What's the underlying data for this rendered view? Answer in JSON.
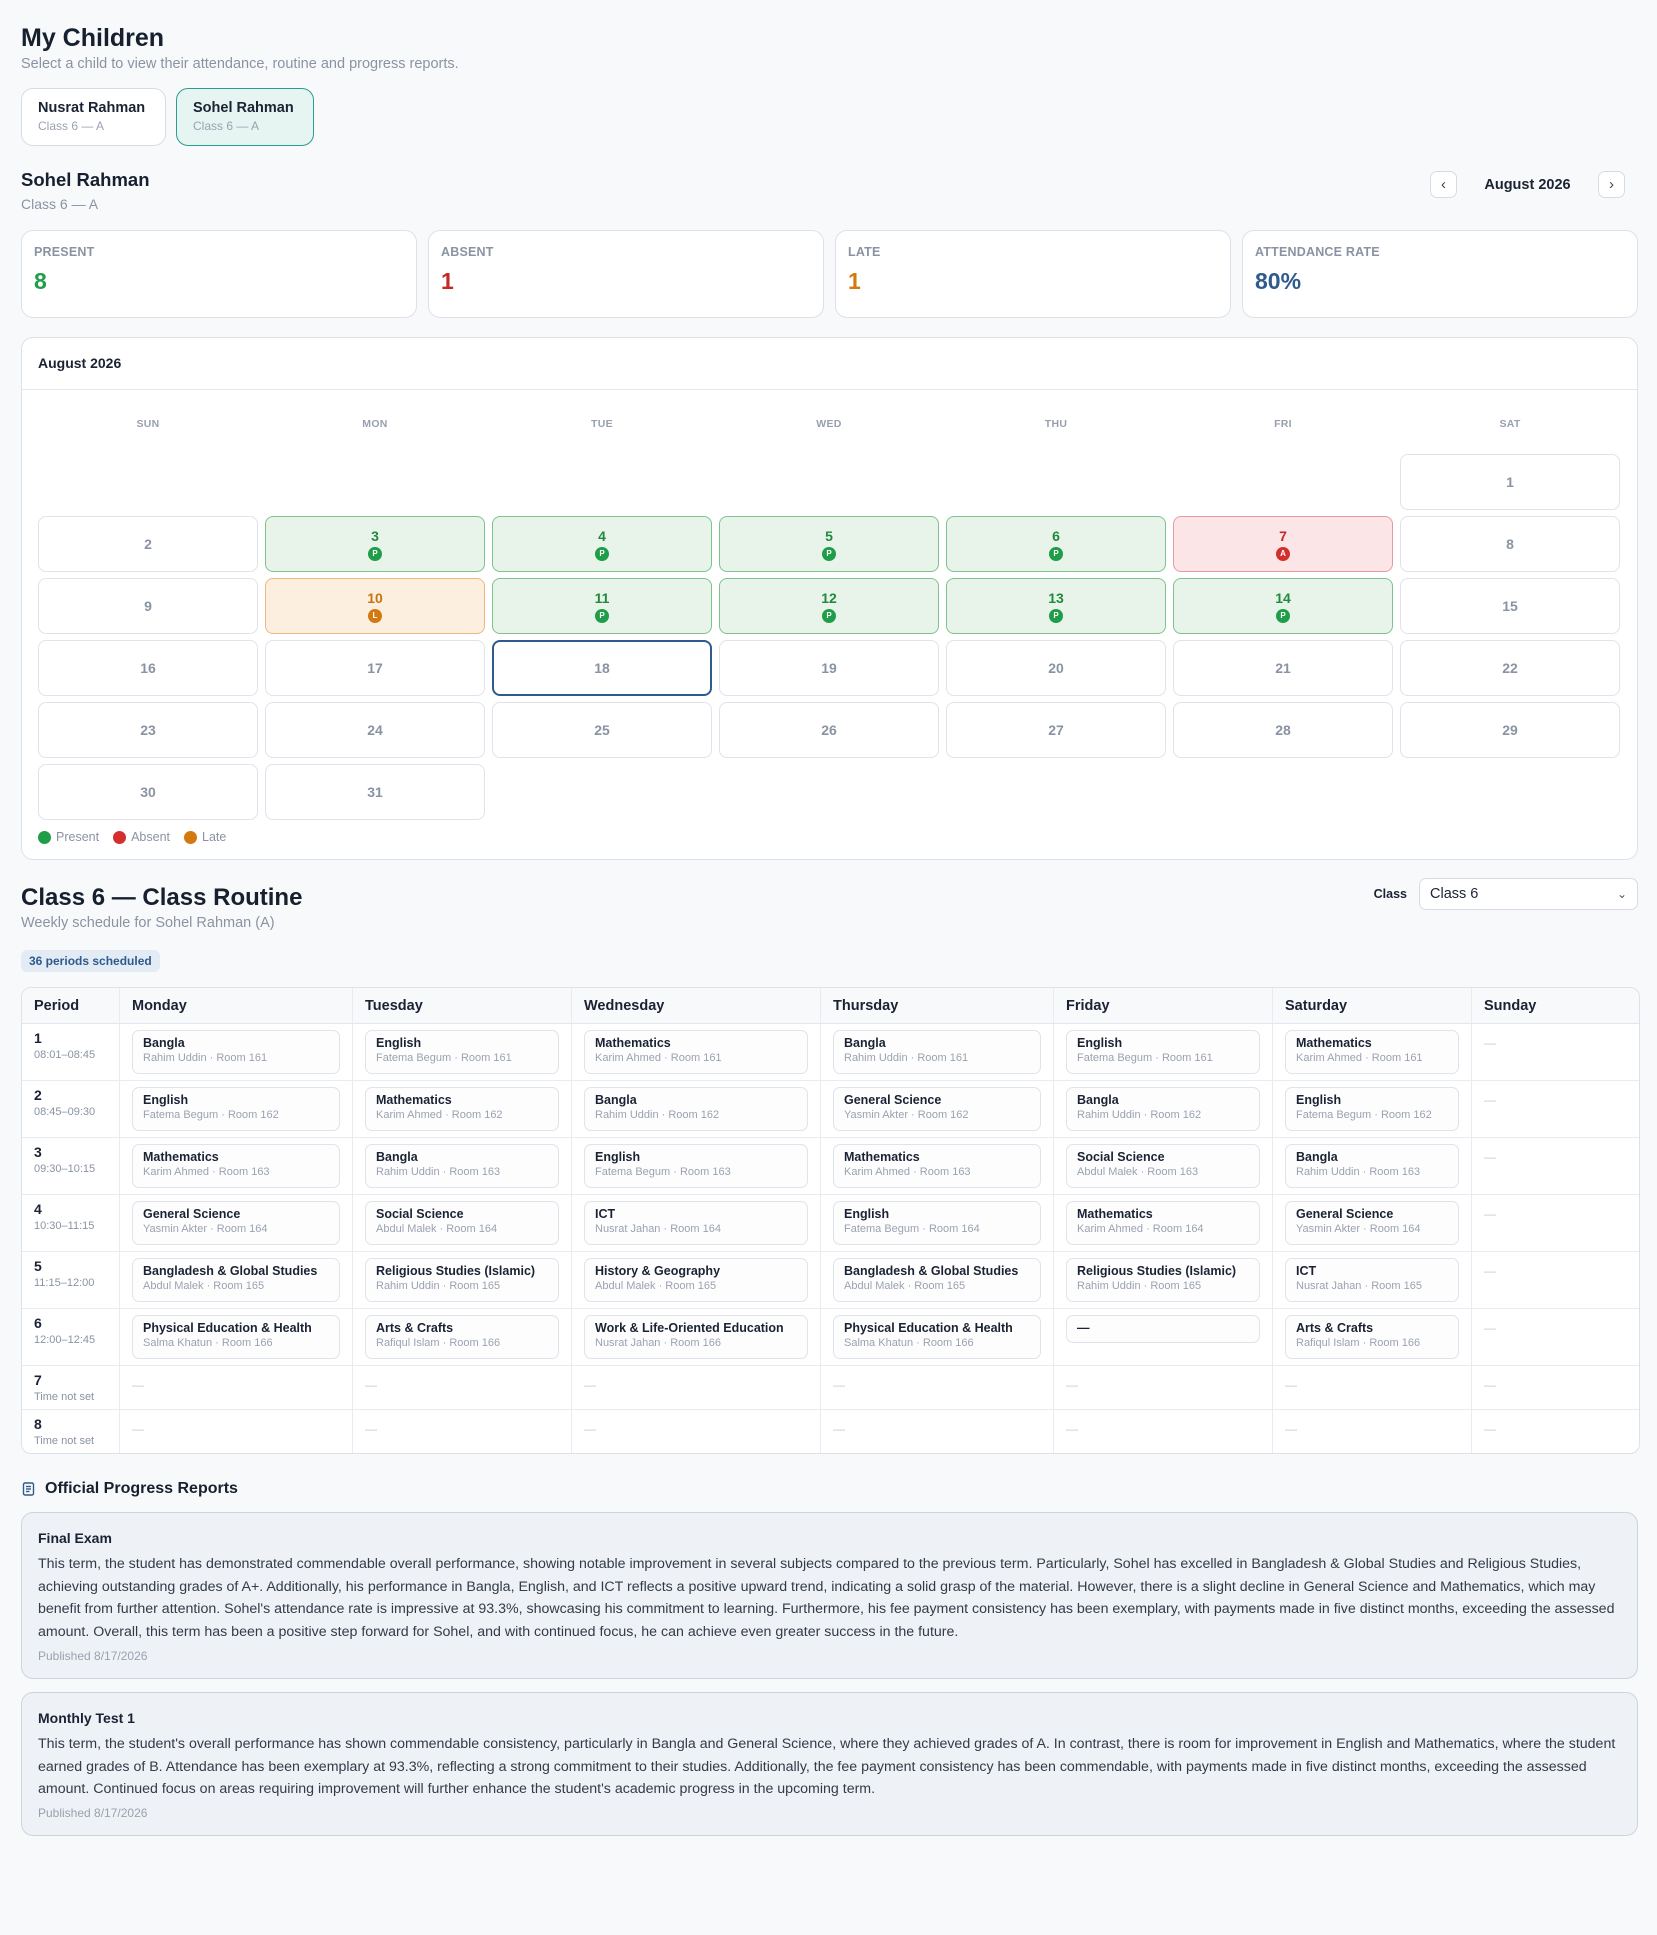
{
  "header": {
    "title": "My Children",
    "subtitle": "Select a child to view their attendance, routine and progress reports."
  },
  "children": [
    {
      "name": "Nusrat Rahman",
      "class": "Class 6 — A"
    },
    {
      "name": "Sohel Rahman",
      "class": "Class 6 — A"
    }
  ],
  "selected": {
    "name": "Sohel Rahman",
    "class": "Class 6 — A",
    "month": "August 2026"
  },
  "stats": {
    "present": {
      "label": "PRESENT",
      "value": "8",
      "color": "#1f9d48"
    },
    "absent": {
      "label": "ABSENT",
      "value": "1",
      "color": "#c62828"
    },
    "late": {
      "label": "LATE",
      "value": "1",
      "color": "#d4790f"
    },
    "rate": {
      "label": "ATTENDANCE RATE",
      "value": "80%",
      "color": "#2f5a8c"
    }
  },
  "calendar": {
    "title": "August 2026",
    "weekdays": [
      "SUN",
      "MON",
      "TUE",
      "WED",
      "THU",
      "FRI",
      "SAT"
    ],
    "leading_blanks": 6,
    "days": [
      {
        "d": "1"
      },
      {
        "d": "2"
      },
      {
        "d": "3",
        "s": "present",
        "b": "P"
      },
      {
        "d": "4",
        "s": "present",
        "b": "P"
      },
      {
        "d": "5",
        "s": "present",
        "b": "P"
      },
      {
        "d": "6",
        "s": "present",
        "b": "P"
      },
      {
        "d": "7",
        "s": "absent",
        "b": "A"
      },
      {
        "d": "8"
      },
      {
        "d": "9"
      },
      {
        "d": "10",
        "s": "late",
        "b": "L"
      },
      {
        "d": "11",
        "s": "present",
        "b": "P"
      },
      {
        "d": "12",
        "s": "present",
        "b": "P"
      },
      {
        "d": "13",
        "s": "present",
        "b": "P"
      },
      {
        "d": "14",
        "s": "present",
        "b": "P"
      },
      {
        "d": "15"
      },
      {
        "d": "16"
      },
      {
        "d": "17"
      },
      {
        "d": "18",
        "today": true
      },
      {
        "d": "19"
      },
      {
        "d": "20"
      },
      {
        "d": "21"
      },
      {
        "d": "22"
      },
      {
        "d": "23"
      },
      {
        "d": "24"
      },
      {
        "d": "25"
      },
      {
        "d": "26"
      },
      {
        "d": "27"
      },
      {
        "d": "28"
      },
      {
        "d": "29"
      },
      {
        "d": "30"
      },
      {
        "d": "31"
      }
    ],
    "legend": [
      {
        "label": "Present",
        "color": "#1f9d48"
      },
      {
        "label": "Absent",
        "color": "#d32f2f"
      },
      {
        "label": "Late",
        "color": "#d4790f"
      }
    ]
  },
  "routine": {
    "title": "Class 6 — Class Routine",
    "subtitle": "Weekly schedule for Sohel Rahman (A)",
    "class_label": "Class",
    "class_value": "Class 6",
    "periods_chip": "36 periods scheduled",
    "columns": [
      "Period",
      "Monday",
      "Tuesday",
      "Wednesday",
      "Thursday",
      "Friday",
      "Saturday",
      "Sunday"
    ],
    "rows": [
      {
        "period": "1",
        "time": "08:01–08:45",
        "cells": [
          {
            "s": "Bangla",
            "m": "Rahim Uddin · Room 161"
          },
          {
            "s": "English",
            "m": "Fatema Begum · Room 161"
          },
          {
            "s": "Mathematics",
            "m": "Karim Ahmed · Room 161"
          },
          {
            "s": "Bangla",
            "m": "Rahim Uddin · Room 161"
          },
          {
            "s": "English",
            "m": "Fatema Begum · Room 161"
          },
          {
            "s": "Mathematics",
            "m": "Karim Ahmed · Room 161"
          },
          null
        ]
      },
      {
        "period": "2",
        "time": "08:45–09:30",
        "cells": [
          {
            "s": "English",
            "m": "Fatema Begum · Room 162"
          },
          {
            "s": "Mathematics",
            "m": "Karim Ahmed · Room 162"
          },
          {
            "s": "Bangla",
            "m": "Rahim Uddin · Room 162"
          },
          {
            "s": "General Science",
            "m": "Yasmin Akter · Room 162"
          },
          {
            "s": "Bangla",
            "m": "Rahim Uddin · Room 162"
          },
          {
            "s": "English",
            "m": "Fatema Begum · Room 162"
          },
          null
        ]
      },
      {
        "period": "3",
        "time": "09:30–10:15",
        "cells": [
          {
            "s": "Mathematics",
            "m": "Karim Ahmed · Room 163"
          },
          {
            "s": "Bangla",
            "m": "Rahim Uddin · Room 163"
          },
          {
            "s": "English",
            "m": "Fatema Begum · Room 163"
          },
          {
            "s": "Mathematics",
            "m": "Karim Ahmed · Room 163"
          },
          {
            "s": "Social Science",
            "m": "Abdul Malek · Room 163"
          },
          {
            "s": "Bangla",
            "m": "Rahim Uddin · Room 163"
          },
          null
        ]
      },
      {
        "period": "4",
        "time": "10:30–11:15",
        "cells": [
          {
            "s": "General Science",
            "m": "Yasmin Akter · Room 164"
          },
          {
            "s": "Social Science",
            "m": "Abdul Malek · Room 164"
          },
          {
            "s": "ICT",
            "m": "Nusrat Jahan · Room 164"
          },
          {
            "s": "English",
            "m": "Fatema Begum · Room 164"
          },
          {
            "s": "Mathematics",
            "m": "Karim Ahmed · Room 164"
          },
          {
            "s": "General Science",
            "m": "Yasmin Akter · Room 164"
          },
          null
        ]
      },
      {
        "period": "5",
        "time": "11:15–12:00",
        "cells": [
          {
            "s": "Bangladesh & Global Studies",
            "m": "Abdul Malek · Room 165"
          },
          {
            "s": "Religious Studies (Islamic)",
            "m": "Rahim Uddin · Room 165"
          },
          {
            "s": "History & Geography",
            "m": "Abdul Malek · Room 165"
          },
          {
            "s": "Bangladesh & Global Studies",
            "m": "Abdul Malek · Room 165"
          },
          {
            "s": "Religious Studies (Islamic)",
            "m": "Rahim Uddin · Room 165"
          },
          {
            "s": "ICT",
            "m": "Nusrat Jahan · Room 165"
          },
          null
        ]
      },
      {
        "period": "6",
        "time": "12:00–12:45",
        "cells": [
          {
            "s": "Physical Education & Health",
            "m": "Salma Khatun · Room 166"
          },
          {
            "s": "Arts & Crafts",
            "m": "Rafiqul Islam · Room 166"
          },
          {
            "s": "Work & Life-Oriented Education",
            "m": "Nusrat Jahan · Room 166"
          },
          {
            "s": "Physical Education & Health",
            "m": "Salma Khatun · Room 166"
          },
          {
            "s": "—",
            "m": ""
          },
          {
            "s": "Arts & Crafts",
            "m": "Rafiqul Islam · Room 166"
          },
          null
        ]
      },
      {
        "period": "7",
        "time": "Time not set",
        "cells": [
          null,
          null,
          null,
          null,
          null,
          null,
          null
        ]
      },
      {
        "period": "8",
        "time": "Time not set",
        "cells": [
          null,
          null,
          null,
          null,
          null,
          null,
          null
        ]
      }
    ],
    "empty_mark": "—"
  },
  "reports": {
    "title": "Official Progress Reports",
    "items": [
      {
        "title": "Final Exam",
        "body": "This term, the student has demonstrated commendable overall performance, showing notable improvement in several subjects compared to the previous term. Particularly, Sohel has excelled in Bangladesh & Global Studies and Religious Studies, achieving outstanding grades of A+. Additionally, his performance in Bangla, English, and ICT reflects a positive upward trend, indicating a solid grasp of the material. However, there is a slight decline in General Science and Mathematics, which may benefit from further attention. Sohel's attendance rate is impressive at 93.3%, showcasing his commitment to learning. Furthermore, his fee payment consistency has been exemplary, with payments made in five distinct months, exceeding the assessed amount. Overall, this term has been a positive step forward for Sohel, and with continued focus, he can achieve even greater success in the future.",
        "date": "Published 8/17/2026"
      },
      {
        "title": "Monthly Test 1",
        "body": "This term, the student's overall performance has shown commendable consistency, particularly in Bangla and General Science, where they achieved grades of A. In contrast, there is room for improvement in English and Mathematics, where the student earned grades of B. Attendance has been exemplary at 93.3%, reflecting a strong commitment to their studies. Additionally, the fee payment consistency has been commendable, with payments made in five distinct months, exceeding the assessed amount. Continued focus on areas requiring improvement will further enhance the student's academic progress in the upcoming term.",
        "date": "Published 8/17/2026"
      }
    ]
  }
}
